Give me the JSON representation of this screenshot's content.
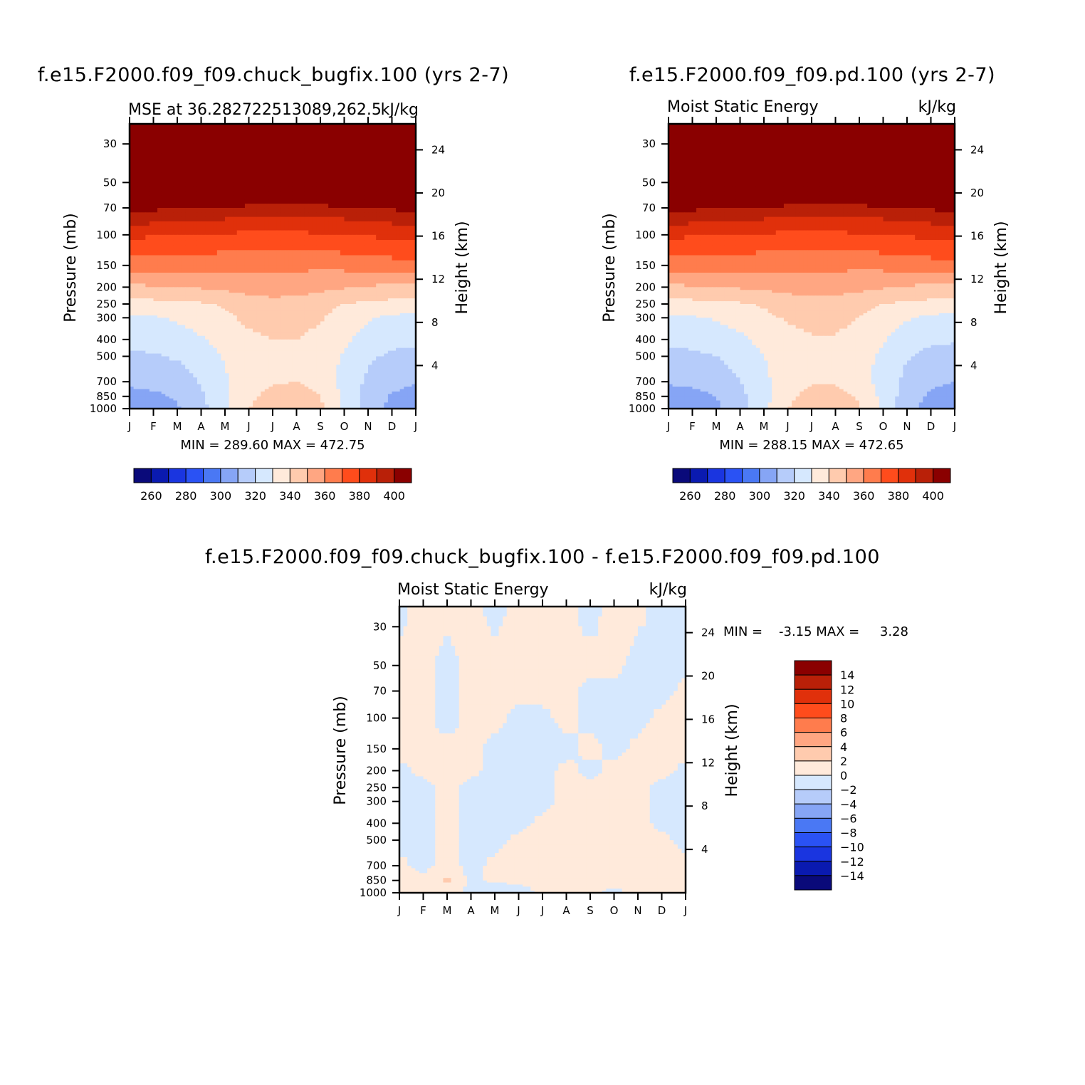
{
  "chart_data": [
    {
      "type": "heatmap",
      "title": "f.e15.F2000.f09_f09.chuck_bugfix.100 (yrs 2-7)",
      "subtitle_left": "MSE at 36.282722513089,262.5",
      "subtitle_right": "kJ/kg",
      "ylabel": "Pressure (mb)",
      "ylabel_right": "Height (km)",
      "x_ticks": [
        "J",
        "F",
        "M",
        "A",
        "M",
        "J",
        "J",
        "A",
        "S",
        "O",
        "N",
        "D",
        "J"
      ],
      "y_ticks": [
        "30",
        "50",
        "70",
        "100",
        "150",
        "200",
        "250",
        "300",
        "400",
        "500",
        "700",
        "850",
        "1000"
      ],
      "y_ticks_right": [
        "24",
        "20",
        "16",
        "12",
        "8",
        "4"
      ],
      "min_max": "MIN = 289.60 MAX = 472.75",
      "min": 289.6,
      "max": 472.75,
      "colorbar_labels": [
        "260",
        "280",
        "300",
        "320",
        "340",
        "360",
        "380",
        "400"
      ],
      "field_rows": [
        {
          "p": 30,
          "v": [
            430,
            430,
            430,
            430,
            430,
            430,
            430,
            430,
            430,
            430,
            430,
            430,
            430
          ]
        },
        {
          "p": 50,
          "v": [
            430,
            430,
            430,
            430,
            430,
            430,
            430,
            430,
            430,
            430,
            430,
            430,
            430
          ]
        },
        {
          "p": 70,
          "v": [
            394,
            392,
            390,
            389,
            388,
            386,
            385,
            385,
            386,
            387,
            389,
            391,
            394
          ]
        },
        {
          "p": 100,
          "v": [
            372,
            371,
            370,
            370,
            369,
            368,
            368,
            368,
            369,
            370,
            371,
            372,
            372
          ]
        },
        {
          "p": 150,
          "v": [
            356,
            355,
            355,
            354,
            353,
            352,
            352,
            352,
            352,
            353,
            354,
            356,
            357
          ]
        },
        {
          "p": 200,
          "v": [
            338,
            339,
            340,
            341,
            342,
            345,
            346,
            345,
            343,
            341,
            339,
            338,
            338
          ]
        },
        {
          "p": 250,
          "v": [
            327,
            327,
            328,
            329,
            331,
            334,
            336,
            336,
            333,
            330,
            328,
            327,
            327
          ]
        },
        {
          "p": 300,
          "v": [
            318,
            319,
            321,
            324,
            328,
            332,
            334,
            334,
            331,
            326,
            321,
            318,
            317
          ]
        },
        {
          "p": 400,
          "v": [
            313,
            314,
            316,
            319,
            324,
            328,
            330,
            330,
            327,
            322,
            316,
            313,
            312
          ]
        },
        {
          "p": 500,
          "v": [
            308,
            309,
            311,
            315,
            321,
            325,
            327,
            327,
            324,
            319,
            312,
            308,
            307
          ]
        },
        {
          "p": 700,
          "v": [
            302,
            303,
            305,
            311,
            319,
            325,
            329,
            330,
            326,
            317,
            308,
            303,
            301
          ]
        },
        {
          "p": 850,
          "v": [
            297,
            298,
            301,
            308,
            318,
            328,
            333,
            334,
            330,
            318,
            306,
            299,
            296
          ]
        },
        {
          "p": 1000,
          "v": [
            294,
            295,
            299,
            307,
            318,
            330,
            336,
            337,
            332,
            319,
            305,
            297,
            293
          ]
        }
      ]
    },
    {
      "type": "heatmap",
      "title": "f.e15.F2000.f09_f09.pd.100 (yrs 2-7)",
      "subtitle_left": "Moist Static Energy",
      "subtitle_right": "kJ/kg",
      "ylabel": "Pressure (mb)",
      "ylabel_right": "Height (km)",
      "x_ticks": [
        "J",
        "F",
        "M",
        "A",
        "M",
        "J",
        "J",
        "A",
        "S",
        "O",
        "N",
        "D",
        "J"
      ],
      "y_ticks": [
        "30",
        "50",
        "70",
        "100",
        "150",
        "200",
        "250",
        "300",
        "400",
        "500",
        "700",
        "850",
        "1000"
      ],
      "y_ticks_right": [
        "24",
        "20",
        "16",
        "12",
        "8",
        "4"
      ],
      "min_max": "MIN = 288.15 MAX = 472.65",
      "min": 288.15,
      "max": 472.65,
      "colorbar_labels": [
        "260",
        "280",
        "300",
        "320",
        "340",
        "360",
        "380",
        "400"
      ],
      "field_rows": [
        {
          "p": 30,
          "v": [
            430,
            430,
            430,
            430,
            430,
            430,
            430,
            430,
            430,
            430,
            430,
            430,
            430
          ]
        },
        {
          "p": 50,
          "v": [
            430,
            430,
            430,
            430,
            430,
            430,
            430,
            430,
            430,
            430,
            430,
            430,
            430
          ]
        },
        {
          "p": 70,
          "v": [
            394,
            392,
            390,
            389,
            388,
            386,
            385,
            385,
            386,
            387,
            389,
            391,
            394
          ]
        },
        {
          "p": 100,
          "v": [
            372,
            371,
            370,
            370,
            369,
            368,
            368,
            368,
            369,
            370,
            371,
            372,
            372
          ]
        },
        {
          "p": 150,
          "v": [
            356,
            355,
            355,
            354,
            353,
            352,
            352,
            352,
            352,
            353,
            354,
            356,
            357
          ]
        },
        {
          "p": 200,
          "v": [
            338,
            339,
            340,
            341,
            342,
            344,
            345,
            345,
            343,
            341,
            339,
            338,
            338
          ]
        },
        {
          "p": 250,
          "v": [
            327,
            327,
            328,
            329,
            331,
            334,
            336,
            335,
            333,
            330,
            328,
            327,
            327
          ]
        },
        {
          "p": 300,
          "v": [
            318,
            319,
            321,
            324,
            328,
            331,
            333,
            333,
            330,
            326,
            321,
            318,
            317
          ]
        },
        {
          "p": 400,
          "v": [
            312,
            313,
            315,
            318,
            323,
            327,
            329,
            329,
            326,
            321,
            315,
            312,
            311
          ]
        },
        {
          "p": 500,
          "v": [
            307,
            308,
            310,
            314,
            320,
            324,
            326,
            326,
            323,
            318,
            311,
            307,
            306
          ]
        },
        {
          "p": 700,
          "v": [
            301,
            302,
            304,
            310,
            318,
            325,
            329,
            329,
            325,
            316,
            307,
            302,
            300
          ]
        },
        {
          "p": 850,
          "v": [
            296,
            297,
            300,
            307,
            317,
            328,
            333,
            333,
            329,
            317,
            305,
            298,
            295
          ]
        },
        {
          "p": 1000,
          "v": [
            293,
            294,
            298,
            306,
            317,
            330,
            335,
            336,
            331,
            318,
            304,
            296,
            292
          ]
        }
      ]
    },
    {
      "type": "heatmap",
      "title": "f.e15.F2000.f09_f09.chuck_bugfix.100 - f.e15.F2000.f09_f09.pd.100",
      "subtitle_left": "Moist Static Energy",
      "subtitle_right": "kJ/kg",
      "ylabel": "Pressure (mb)",
      "ylabel_right": "Height (km)",
      "x_ticks": [
        "J",
        "F",
        "M",
        "A",
        "M",
        "J",
        "J",
        "A",
        "S",
        "O",
        "N",
        "D",
        "J"
      ],
      "y_ticks": [
        "30",
        "50",
        "70",
        "100",
        "150",
        "200",
        "250",
        "300",
        "400",
        "500",
        "700",
        "850",
        "1000"
      ],
      "y_ticks_right": [
        "24",
        "20",
        "16",
        "12",
        "8",
        "4"
      ],
      "min_max": "MIN =    -3.15 MAX =     3.28",
      "min": -3.15,
      "max": 3.28,
      "colorbar_labels": [
        "14",
        "12",
        "10",
        "8",
        "6",
        "4",
        "2",
        "0",
        "-2",
        "-4",
        "-6",
        "-8",
        "-10",
        "-12",
        "-14"
      ],
      "field_rows": [
        {
          "p": 30,
          "v": [
            -0.5,
            0.6,
            0.4,
            0.5,
            -0.6,
            0.5,
            0.6,
            0.5,
            -0.7,
            0.6,
            0.5,
            -0.6,
            -0.5
          ]
        },
        {
          "p": 50,
          "v": [
            0.5,
            0.6,
            -0.6,
            0.6,
            0.5,
            0.6,
            0.7,
            0.6,
            0.5,
            0.5,
            -0.6,
            -0.7,
            -0.5
          ]
        },
        {
          "p": 70,
          "v": [
            0.6,
            0.5,
            -0.6,
            0.6,
            0.5,
            0.7,
            0.6,
            0.5,
            -0.6,
            -0.5,
            -0.6,
            -0.6,
            0.5
          ]
        },
        {
          "p": 100,
          "v": [
            0.5,
            0.5,
            -0.7,
            0.5,
            0.6,
            -0.6,
            -0.5,
            0.6,
            -0.6,
            -0.6,
            -0.6,
            0.5,
            0.6
          ]
        },
        {
          "p": 150,
          "v": [
            0.6,
            0.6,
            0.5,
            0.5,
            -0.6,
            -0.6,
            -0.7,
            -0.6,
            0.6,
            -0.6,
            0.5,
            0.5,
            0.6
          ]
        },
        {
          "p": 200,
          "v": [
            -0.5,
            0.5,
            0.5,
            0.5,
            -0.6,
            -0.7,
            -0.6,
            0.5,
            -0.6,
            0.6,
            0.5,
            0.6,
            -0.5
          ]
        },
        {
          "p": 250,
          "v": [
            -0.6,
            -0.6,
            0.5,
            -0.6,
            -0.6,
            -0.6,
            -0.6,
            0.6,
            0.5,
            0.5,
            0.5,
            -0.6,
            -0.6
          ]
        },
        {
          "p": 300,
          "v": [
            -0.6,
            -0.6,
            0.5,
            -0.6,
            -0.6,
            -0.6,
            -0.6,
            0.5,
            0.5,
            0.5,
            0.5,
            -0.6,
            -0.6
          ]
        },
        {
          "p": 400,
          "v": [
            -0.6,
            -0.6,
            0.6,
            -0.6,
            -0.7,
            -0.6,
            0.5,
            0.5,
            0.6,
            0.6,
            0.6,
            -0.5,
            -0.6
          ]
        },
        {
          "p": 500,
          "v": [
            -0.6,
            -0.7,
            0.6,
            -0.6,
            -0.6,
            0.5,
            0.6,
            0.5,
            0.6,
            0.6,
            0.5,
            0.5,
            -0.6
          ]
        },
        {
          "p": 700,
          "v": [
            0.5,
            -0.6,
            0.7,
            -0.6,
            0.5,
            0.6,
            0.6,
            0.5,
            0.5,
            0.6,
            0.5,
            0.6,
            0.5
          ]
        },
        {
          "p": 850,
          "v": [
            0.6,
            0.5,
            2.4,
            -0.6,
            0.5,
            0.6,
            0.5,
            0.6,
            0.5,
            0.6,
            0.6,
            0.5,
            0.6
          ]
        },
        {
          "p": 1000,
          "v": [
            0.6,
            0.5,
            1.2,
            -0.6,
            -2.1,
            -1.1,
            0.5,
            0.6,
            0.5,
            -0.5,
            0.6,
            0.5,
            0.6
          ]
        }
      ]
    }
  ],
  "palettes": {
    "absolute": [
      "#0a0a7a",
      "#0a1ab0",
      "#1a35e0",
      "#2a52f4",
      "#4a78f4",
      "#86a5f5",
      "#b6ccfa",
      "#d6e8fe",
      "#ffeadb",
      "#ffcbae",
      "#ffa682",
      "#ff7c4d",
      "#ff4c1c",
      "#e0300b",
      "#b92008",
      "#8a0000"
    ],
    "difference": [
      "#8a0000",
      "#b92008",
      "#e0300b",
      "#ff4c1c",
      "#ff7c4d",
      "#ffa682",
      "#ffcbae",
      "#ffeadb",
      "#d6e8fe",
      "#b6ccfa",
      "#86a5f5",
      "#4a78f4",
      "#2a52f4",
      "#1a35e0",
      "#0a1ab0",
      "#0a0a7a"
    ]
  }
}
